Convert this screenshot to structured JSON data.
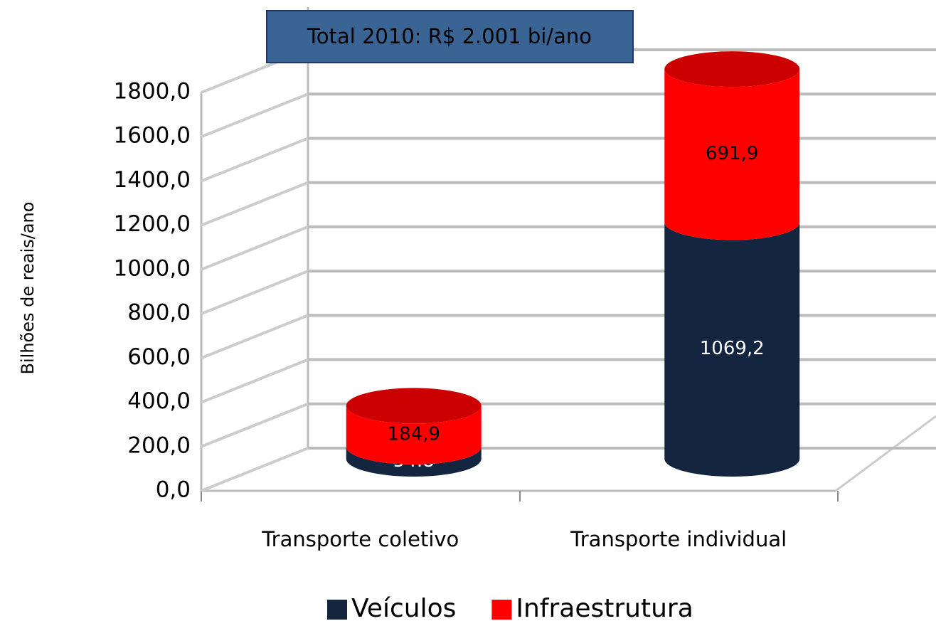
{
  "chart_data": {
    "type": "bar3d-stacked-cylinder",
    "annotation": "Total 2010: R$ 2.001 bi/ano",
    "y_label": "Bilhões de reais/ano",
    "categories": [
      "Transporte coletivo",
      "Transporte individual"
    ],
    "series": [
      {
        "name": "Veículos",
        "color": "#13253f",
        "values": [
          54.8,
          1069.2
        ],
        "value_labels": [
          "54.8",
          "1069,2"
        ]
      },
      {
        "name": "Infraestrutura",
        "color": "#ff0000",
        "values": [
          184.9,
          691.9
        ],
        "value_labels": [
          "184,9",
          "691,9"
        ]
      }
    ],
    "ylim": [
      0,
      1800
    ],
    "yticks": [
      {
        "value": 0,
        "label": "0,0"
      },
      {
        "value": 200,
        "label": "200,0"
      },
      {
        "value": 400,
        "label": "400,0"
      },
      {
        "value": 600,
        "label": "600,0"
      },
      {
        "value": 800,
        "label": "800,0"
      },
      {
        "value": 1000,
        "label": "1000,0"
      },
      {
        "value": 1200,
        "label": "1200,0"
      },
      {
        "value": 1400,
        "label": "1400,0"
      },
      {
        "value": 1600,
        "label": "1600,0"
      },
      {
        "value": 1800,
        "label": "1800,0"
      }
    ],
    "grid": true
  }
}
